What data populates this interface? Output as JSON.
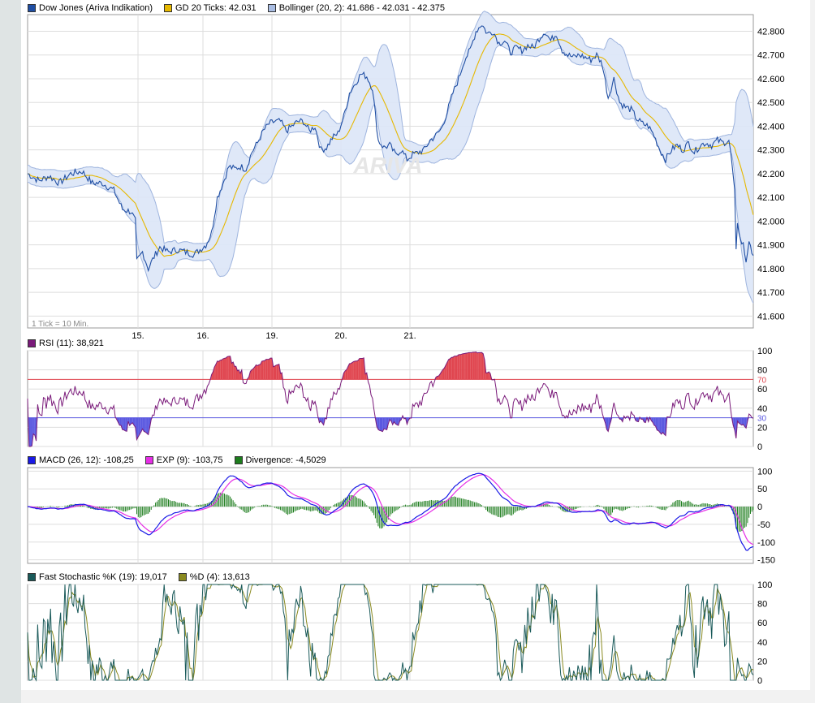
{
  "colors": {
    "price": "#1f4ea3",
    "ma": "#e6b800",
    "band_fill": "#dbe6f7",
    "band_line": "#9eb4de",
    "rsi": "#7a1a7a",
    "rsi_over": "#e0454f",
    "rsi_under": "#5a58e0",
    "macd": "#1a1ae6",
    "exp": "#e62ee6",
    "div": "#1d7d1d",
    "stoch_k": "#1a5a5a",
    "stoch_d": "#8a8a20",
    "grid": "#dddddd"
  },
  "watermark": "ARIVA",
  "chart_data": [
    {
      "type": "line",
      "name": "price-panel",
      "series": [
        {
          "name": "Dow Jones (Ariva Indikation)",
          "swatch": "#1f4ea3"
        },
        {
          "name": "GD 20 Ticks: 42.031",
          "swatch": "#e6b800"
        },
        {
          "name": "Bollinger (20, 2): 41.686 - 42.031 - 42.375",
          "swatch": "#a9bde3"
        }
      ],
      "ylim": [
        41550,
        42870
      ],
      "yticks": [
        "42.800",
        "42.700",
        "42.600",
        "42.500",
        "42.400",
        "42.300",
        "42.200",
        "42.100",
        "42.000",
        "41.900",
        "41.800",
        "41.700",
        "41.600"
      ],
      "ytick_values": [
        42800,
        42700,
        42600,
        42500,
        42400,
        42300,
        42200,
        42100,
        42000,
        41900,
        41800,
        41700,
        41600
      ],
      "xticks": [
        "15.",
        "16.",
        "19.",
        "20.",
        "21."
      ],
      "note": "1 Tick = 10 Min.",
      "anchors": [
        [
          0,
          42200
        ],
        [
          8,
          42170
        ],
        [
          15,
          42190
        ],
        [
          22,
          42160
        ],
        [
          30,
          42200
        ],
        [
          38,
          42210
        ],
        [
          45,
          42160
        ],
        [
          52,
          42160
        ],
        [
          60,
          42130
        ],
        [
          66,
          42050
        ],
        [
          72,
          42040
        ],
        [
          75,
          42000
        ],
        [
          76,
          41830
        ],
        [
          80,
          41870
        ],
        [
          84,
          41800
        ],
        [
          88,
          41850
        ],
        [
          92,
          41890
        ],
        [
          98,
          41870
        ],
        [
          104,
          41880
        ],
        [
          110,
          41870
        ],
        [
          116,
          41860
        ],
        [
          120,
          41880
        ],
        [
          124,
          41900
        ],
        [
          128,
          41950
        ],
        [
          132,
          42100
        ],
        [
          136,
          42160
        ],
        [
          140,
          42230
        ],
        [
          144,
          42220
        ],
        [
          148,
          42230
        ],
        [
          152,
          42220
        ],
        [
          156,
          42290
        ],
        [
          160,
          42330
        ],
        [
          164,
          42380
        ],
        [
          168,
          42410
        ],
        [
          172,
          42420
        ],
        [
          176,
          42420
        ],
        [
          180,
          42380
        ],
        [
          184,
          42400
        ],
        [
          188,
          42420
        ],
        [
          192,
          42420
        ],
        [
          196,
          42380
        ],
        [
          200,
          42400
        ],
        [
          204,
          42300
        ],
        [
          208,
          42310
        ],
        [
          212,
          42350
        ],
        [
          216,
          42370
        ],
        [
          220,
          42440
        ],
        [
          224,
          42540
        ],
        [
          228,
          42580
        ],
        [
          232,
          42620
        ],
        [
          236,
          42610
        ],
        [
          240,
          42560
        ],
        [
          244,
          42340
        ],
        [
          248,
          42310
        ],
        [
          252,
          42320
        ],
        [
          256,
          42280
        ],
        [
          260,
          42300
        ],
        [
          264,
          42260
        ],
        [
          268,
          42280
        ],
        [
          272,
          42290
        ],
        [
          276,
          42300
        ],
        [
          280,
          42340
        ],
        [
          284,
          42360
        ],
        [
          288,
          42390
        ],
        [
          292,
          42460
        ],
        [
          296,
          42540
        ],
        [
          300,
          42600
        ],
        [
          304,
          42680
        ],
        [
          308,
          42720
        ],
        [
          312,
          42800
        ],
        [
          316,
          42830
        ],
        [
          320,
          42790
        ],
        [
          324,
          42800
        ],
        [
          328,
          42750
        ],
        [
          332,
          42760
        ],
        [
          336,
          42710
        ],
        [
          340,
          42730
        ],
        [
          344,
          42720
        ],
        [
          348,
          42740
        ],
        [
          352,
          42730
        ],
        [
          356,
          42770
        ],
        [
          360,
          42800
        ],
        [
          364,
          42760
        ],
        [
          368,
          42790
        ],
        [
          372,
          42720
        ],
        [
          376,
          42700
        ],
        [
          380,
          42690
        ],
        [
          384,
          42700
        ],
        [
          388,
          42690
        ],
        [
          392,
          42680
        ],
        [
          396,
          42700
        ],
        [
          400,
          42660
        ],
        [
          404,
          42520
        ],
        [
          408,
          42600
        ],
        [
          412,
          42500
        ],
        [
          416,
          42480
        ],
        [
          420,
          42470
        ],
        [
          424,
          42430
        ],
        [
          428,
          42410
        ],
        [
          432,
          42400
        ],
        [
          436,
          42360
        ],
        [
          440,
          42300
        ],
        [
          444,
          42260
        ],
        [
          448,
          42300
        ],
        [
          452,
          42320
        ],
        [
          456,
          42300
        ],
        [
          460,
          42330
        ],
        [
          464,
          42290
        ],
        [
          468,
          42320
        ],
        [
          472,
          42330
        ],
        [
          476,
          42320
        ],
        [
          480,
          42340
        ],
        [
          484,
          42330
        ],
        [
          488,
          42340
        ],
        [
          490,
          42250
        ],
        [
          492,
          42120
        ],
        [
          493,
          41870
        ],
        [
          494,
          42000
        ],
        [
          496,
          41920
        ],
        [
          498,
          41900
        ],
        [
          500,
          41830
        ],
        [
          502,
          41920
        ],
        [
          504,
          41850
        ],
        [
          505,
          41870
        ]
      ]
    },
    {
      "type": "line",
      "name": "rsi-panel",
      "series": [
        {
          "name": "RSI (11): 38,921",
          "swatch": "#7a1a7a"
        }
      ],
      "ylim": [
        0,
        100
      ],
      "yticks": [
        "100",
        "80",
        "60",
        "40",
        "20",
        "0"
      ],
      "ytick_values": [
        100,
        80,
        60,
        40,
        20,
        0
      ],
      "levels": [
        {
          "label": "70",
          "value": 70,
          "color": "#e0454f"
        },
        {
          "label": "30",
          "value": 30,
          "color": "#5a58e0"
        }
      ]
    },
    {
      "type": "line",
      "name": "macd-panel",
      "series": [
        {
          "name": "MACD (26, 12): -108,25",
          "swatch": "#1a1ae6"
        },
        {
          "name": "EXP (9): -103,75",
          "swatch": "#e62ee6"
        },
        {
          "name": "Divergence: -4,5029",
          "swatch": "#1d7d1d"
        }
      ],
      "ylim": [
        -160,
        110
      ],
      "yticks": [
        "100",
        "50",
        "0",
        "-50",
        "-100",
        "-150"
      ],
      "ytick_values": [
        100,
        50,
        0,
        -50,
        -100,
        -150
      ]
    },
    {
      "type": "line",
      "name": "stochastic-panel",
      "series": [
        {
          "name": "Fast Stochastic %K (19): 19,017",
          "swatch": "#1a5a5a"
        },
        {
          "name": "%D (4): 13,613",
          "swatch": "#8a8a20"
        }
      ],
      "ylim": [
        0,
        100
      ],
      "yticks": [
        "100",
        "80",
        "60",
        "40",
        "20",
        "0"
      ],
      "ytick_values": [
        100,
        80,
        60,
        40,
        20,
        0
      ]
    }
  ]
}
